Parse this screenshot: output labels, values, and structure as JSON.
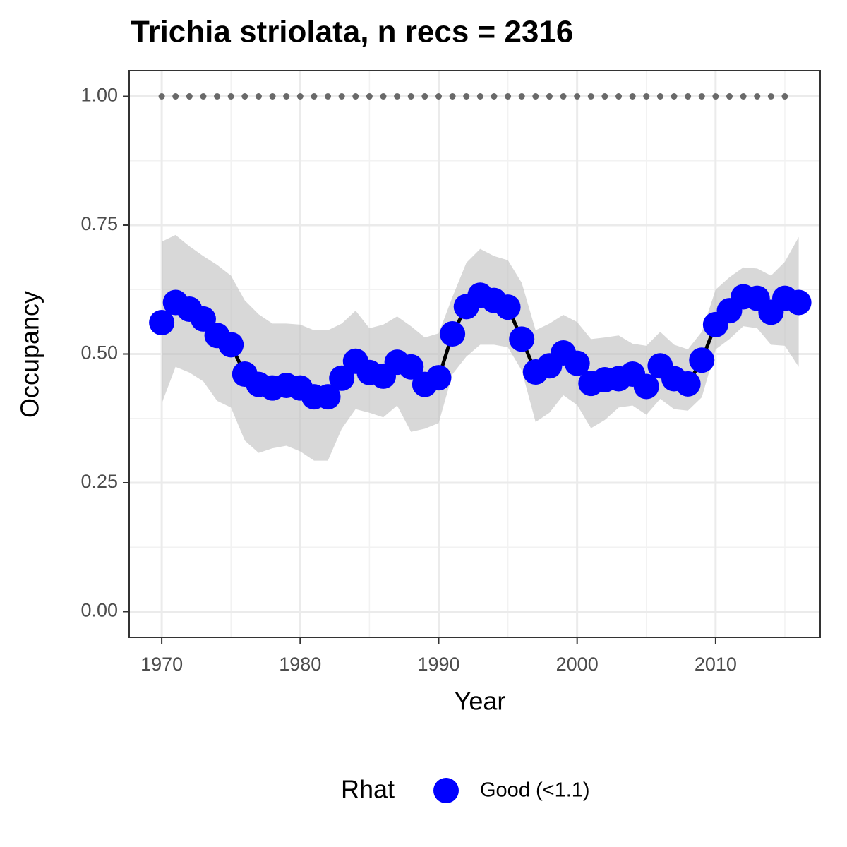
{
  "chart_data": {
    "type": "line",
    "title": "Trichia striolata, n recs = 2316",
    "x_label": "Year",
    "y_label": "Occupancy",
    "legend_title": "Rhat",
    "legend_position": "bottom",
    "grid": true,
    "xlim": [
      1967.65,
      2017.55
    ],
    "ylim": [
      -0.05,
      1.05
    ],
    "xticks": [
      1970,
      1980,
      1990,
      2000,
      2010
    ],
    "yticks": [
      {
        "value": 0,
        "label": "0.00"
      },
      {
        "value": 0.25,
        "label": "0.25"
      },
      {
        "value": 0.5,
        "label": "0.50"
      },
      {
        "value": 0.75,
        "label": "0.75"
      },
      {
        "value": 1,
        "label": "1.00"
      }
    ],
    "xminor_ticks": [
      1975,
      1985,
      1995,
      2005,
      2015
    ],
    "yminor_ticks": [
      0.125,
      0.375,
      0.625,
      0.875
    ],
    "x": [
      1970,
      1971,
      1972,
      1973,
      1974,
      1975,
      1976,
      1977,
      1978,
      1979,
      1980,
      1981,
      1982,
      1983,
      1984,
      1985,
      1986,
      1987,
      1988,
      1989,
      1990,
      1991,
      1992,
      1993,
      1994,
      1995,
      1996,
      1997,
      1998,
      1999,
      2000,
      2001,
      2002,
      2003,
      2004,
      2005,
      2006,
      2007,
      2008,
      2009,
      2010,
      2011,
      2012,
      2013,
      2014,
      2015,
      2016
    ],
    "series": [
      {
        "name": "Good (<1.1)",
        "color": "#0000ff",
        "line_color": "#000000",
        "band_color": "#bebebe",
        "values": [
          0.561,
          0.6,
          0.587,
          0.568,
          0.536,
          0.518,
          0.461,
          0.441,
          0.434,
          0.439,
          0.434,
          0.417,
          0.417,
          0.453,
          0.486,
          0.464,
          0.457,
          0.484,
          0.475,
          0.441,
          0.454,
          0.539,
          0.592,
          0.614,
          0.604,
          0.591,
          0.529,
          0.465,
          0.477,
          0.502,
          0.482,
          0.443,
          0.45,
          0.452,
          0.461,
          0.437,
          0.477,
          0.452,
          0.442,
          0.488,
          0.557,
          0.584,
          0.611,
          0.608,
          0.581,
          0.608,
          0.6
        ],
        "upper": [
          0.718,
          0.731,
          0.709,
          0.69,
          0.673,
          0.652,
          0.604,
          0.577,
          0.559,
          0.559,
          0.557,
          0.546,
          0.546,
          0.559,
          0.584,
          0.55,
          0.557,
          0.573,
          0.554,
          0.532,
          0.54,
          0.611,
          0.677,
          0.704,
          0.69,
          0.682,
          0.638,
          0.546,
          0.559,
          0.576,
          0.562,
          0.529,
          0.532,
          0.536,
          0.52,
          0.516,
          0.543,
          0.518,
          0.509,
          0.543,
          0.625,
          0.649,
          0.668,
          0.666,
          0.652,
          0.679,
          0.727
        ],
        "lower": [
          0.404,
          0.475,
          0.464,
          0.447,
          0.409,
          0.396,
          0.332,
          0.308,
          0.317,
          0.322,
          0.311,
          0.293,
          0.293,
          0.355,
          0.393,
          0.386,
          0.377,
          0.4,
          0.349,
          0.355,
          0.366,
          0.461,
          0.495,
          0.518,
          0.518,
          0.513,
          0.468,
          0.368,
          0.386,
          0.42,
          0.401,
          0.356,
          0.372,
          0.396,
          0.4,
          0.382,
          0.413,
          0.393,
          0.39,
          0.416,
          0.509,
          0.529,
          0.554,
          0.55,
          0.518,
          0.516,
          0.475
        ]
      }
    ],
    "dots": {
      "color": "#696969",
      "x": [
        1970,
        1971,
        1972,
        1973,
        1974,
        1975,
        1976,
        1977,
        1978,
        1979,
        1980,
        1981,
        1982,
        1983,
        1984,
        1985,
        1986,
        1987,
        1988,
        1989,
        1990,
        1991,
        1992,
        1993,
        1994,
        1995,
        1996,
        1997,
        1998,
        1999,
        2000,
        2001,
        2002,
        2003,
        2004,
        2005,
        2006,
        2007,
        2008,
        2009,
        2010,
        2011,
        2012,
        2013,
        2014,
        2015
      ],
      "values": [
        1,
        1,
        1,
        1,
        1,
        1,
        1,
        1,
        1,
        1,
        1,
        1,
        1,
        1,
        1,
        1,
        1,
        1,
        1,
        1,
        1,
        1,
        1,
        1,
        1,
        1,
        1,
        1,
        1,
        1,
        1,
        1,
        1,
        1,
        1,
        1,
        1,
        1,
        1,
        1,
        1,
        1,
        1,
        1,
        1,
        1
      ]
    }
  }
}
